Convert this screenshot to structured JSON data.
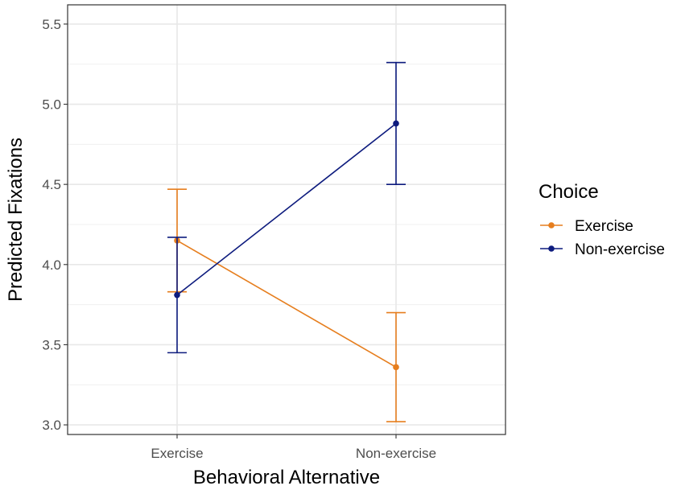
{
  "chart_data": {
    "type": "line",
    "xlabel": "Behavioral Alternative",
    "ylabel": "Predicted Fixations",
    "categories": [
      "Exercise",
      "Non-exercise"
    ],
    "ylim": [
      2.94,
      5.62
    ],
    "yticks": [
      3.0,
      3.5,
      4.0,
      4.5,
      5.0,
      5.5
    ],
    "ytick_labels": [
      "3.0",
      "3.5",
      "4.0",
      "4.5",
      "5.0",
      "5.5"
    ],
    "grid": true,
    "legend": {
      "title": "Choice",
      "position": "right"
    },
    "series": [
      {
        "name": "Exercise",
        "color": "#E67E1E",
        "values": [
          4.15,
          3.36
        ],
        "lower": [
          3.83,
          3.02
        ],
        "upper": [
          4.47,
          3.7
        ]
      },
      {
        "name": "Non-exercise",
        "color": "#0D1B7E",
        "values": [
          3.81,
          4.88
        ],
        "lower": [
          3.45,
          4.5
        ],
        "upper": [
          4.17,
          5.26
        ]
      }
    ]
  }
}
